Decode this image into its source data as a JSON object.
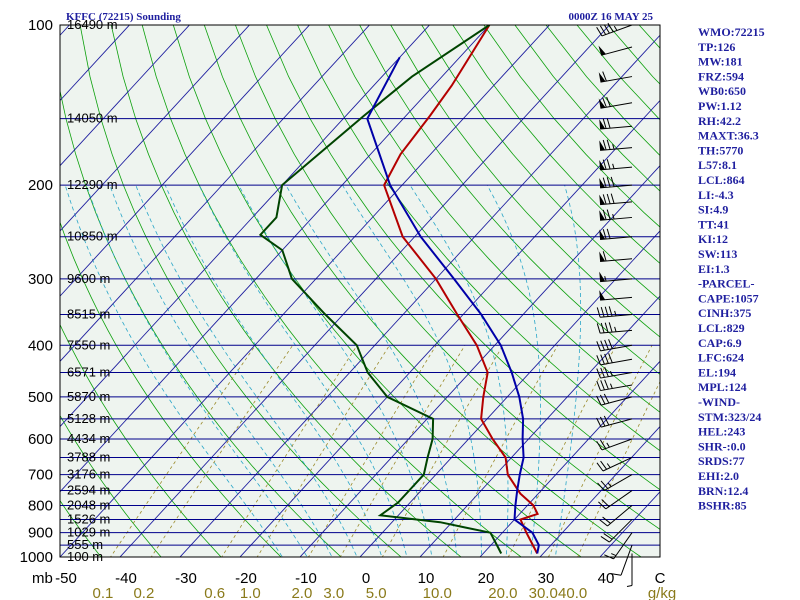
{
  "header": {
    "title_left": "KFFC (72215) Sounding",
    "title_right": "0000Z 16 MAY 25"
  },
  "chart_data": {
    "type": "line",
    "skew": "skew-T log-P",
    "pressure_axis": {
      "unit": "mb",
      "ticks": [
        100,
        200,
        300,
        400,
        500,
        600,
        700,
        800,
        900,
        1000
      ],
      "range": [
        100,
        1000
      ],
      "scale": "log"
    },
    "temperature_axis": {
      "unit": "C",
      "tick_labels": [
        "-50",
        "-40",
        "-30",
        "-20",
        "-10",
        "0",
        "10",
        "20",
        "30",
        "40"
      ],
      "range": [
        -50,
        50
      ]
    },
    "mixing_ratio_axis": {
      "unit": "g/kg",
      "tick_labels": [
        "0.1",
        "0.2",
        "0.6",
        "1.0",
        "2.0",
        "3.0",
        "5.0",
        "10.0",
        "20.0",
        "30.0",
        "40.0"
      ]
    },
    "height_levels": [
      {
        "p": 100,
        "label": "16490 m"
      },
      {
        "p": 150,
        "label": "14050 m"
      },
      {
        "p": 200,
        "label": "12290 m"
      },
      {
        "p": 250,
        "label": "10850 m"
      },
      {
        "p": 300,
        "label": "9600 m"
      },
      {
        "p": 350,
        "label": "8515 m"
      },
      {
        "p": 400,
        "label": "7550 m"
      },
      {
        "p": 450,
        "label": "6571 m"
      },
      {
        "p": 500,
        "label": "5870 m"
      },
      {
        "p": 550,
        "label": "5128 m"
      },
      {
        "p": 600,
        "label": "4434 m"
      },
      {
        "p": 650,
        "label": "3788 m"
      },
      {
        "p": 700,
        "label": "3176 m"
      },
      {
        "p": 750,
        "label": "2594 m"
      },
      {
        "p": 800,
        "label": "2048 m"
      },
      {
        "p": 850,
        "label": "1526 m"
      },
      {
        "p": 900,
        "label": "1029 m"
      },
      {
        "p": 950,
        "label": "555 m"
      },
      {
        "p": 1000,
        "label": "100 m"
      }
    ],
    "series": [
      {
        "color": "#b40000",
        "points": [
          [
            100,
            -60
          ],
          [
            130,
            -57
          ],
          [
            148,
            -56
          ],
          [
            175,
            -55
          ],
          [
            200,
            -53
          ],
          [
            250,
            -42
          ],
          [
            300,
            -30
          ],
          [
            350,
            -21
          ],
          [
            400,
            -13
          ],
          [
            450,
            -7
          ],
          [
            500,
            -4
          ],
          [
            550,
            -1
          ],
          [
            600,
            4
          ],
          [
            650,
            9
          ],
          [
            700,
            12
          ],
          [
            760,
            17
          ],
          [
            800,
            21
          ],
          [
            830,
            23
          ],
          [
            850,
            21
          ],
          [
            900,
            24
          ],
          [
            950,
            27
          ],
          [
            985,
            29
          ]
        ]
      },
      {
        "color": "#004400",
        "points": [
          [
            100,
            -60
          ],
          [
            125,
            -65
          ],
          [
            148,
            -67
          ],
          [
            200,
            -70
          ],
          [
            230,
            -66
          ],
          [
            248,
            -66
          ],
          [
            265,
            -60
          ],
          [
            300,
            -54
          ],
          [
            350,
            -43
          ],
          [
            400,
            -33
          ],
          [
            450,
            -27
          ],
          [
            500,
            -20
          ],
          [
            550,
            -9
          ],
          [
            600,
            -6
          ],
          [
            650,
            -4
          ],
          [
            700,
            -2
          ],
          [
            750,
            -2
          ],
          [
            790,
            -2
          ],
          [
            835,
            -3
          ],
          [
            860,
            8
          ],
          [
            880,
            13
          ],
          [
            900,
            18
          ],
          [
            950,
            21
          ],
          [
            985,
            23
          ]
        ]
      },
      {
        "color": "#0000a8",
        "points": [
          [
            115,
            -70
          ],
          [
            150,
            -66
          ],
          [
            200,
            -52
          ],
          [
            250,
            -39
          ],
          [
            300,
            -27
          ],
          [
            350,
            -17
          ],
          [
            400,
            -9
          ],
          [
            450,
            -3
          ],
          [
            500,
            2
          ],
          [
            550,
            6
          ],
          [
            600,
            9
          ],
          [
            650,
            12
          ],
          [
            700,
            14
          ],
          [
            750,
            16
          ],
          [
            800,
            18
          ],
          [
            850,
            20
          ],
          [
            900,
            25
          ],
          [
            950,
            28
          ],
          [
            985,
            29
          ]
        ]
      }
    ],
    "wind_barbs": [
      {
        "p": 100,
        "dir": 250,
        "spd": 45
      },
      {
        "p": 110,
        "dir": 255,
        "spd": 50
      },
      {
        "p": 125,
        "dir": 260,
        "spd": 60
      },
      {
        "p": 140,
        "dir": 260,
        "spd": 70
      },
      {
        "p": 155,
        "dir": 265,
        "spd": 70
      },
      {
        "p": 170,
        "dir": 265,
        "spd": 75
      },
      {
        "p": 185,
        "dir": 265,
        "spd": 75
      },
      {
        "p": 200,
        "dir": 265,
        "spd": 80
      },
      {
        "p": 215,
        "dir": 265,
        "spd": 80
      },
      {
        "p": 230,
        "dir": 265,
        "spd": 75
      },
      {
        "p": 250,
        "dir": 265,
        "spd": 70
      },
      {
        "p": 275,
        "dir": 265,
        "spd": 60
      },
      {
        "p": 300,
        "dir": 265,
        "spd": 55
      },
      {
        "p": 325,
        "dir": 265,
        "spd": 50
      },
      {
        "p": 350,
        "dir": 265,
        "spd": 45
      },
      {
        "p": 375,
        "dir": 265,
        "spd": 45
      },
      {
        "p": 400,
        "dir": 260,
        "spd": 40
      },
      {
        "p": 425,
        "dir": 260,
        "spd": 40
      },
      {
        "p": 450,
        "dir": 260,
        "spd": 35
      },
      {
        "p": 475,
        "dir": 260,
        "spd": 35
      },
      {
        "p": 500,
        "dir": 255,
        "spd": 30
      },
      {
        "p": 550,
        "dir": 255,
        "spd": 30
      },
      {
        "p": 600,
        "dir": 250,
        "spd": 25
      },
      {
        "p": 650,
        "dir": 245,
        "spd": 25
      },
      {
        "p": 700,
        "dir": 240,
        "spd": 25
      },
      {
        "p": 750,
        "dir": 235,
        "spd": 20
      },
      {
        "p": 800,
        "dir": 230,
        "spd": 20
      },
      {
        "p": 850,
        "dir": 225,
        "spd": 20
      },
      {
        "p": 900,
        "dir": 215,
        "spd": 15
      },
      {
        "p": 950,
        "dir": 200,
        "spd": 10
      },
      {
        "p": 985,
        "dir": 180,
        "spd": 5
      }
    ]
  },
  "indices": [
    "WMO:72215",
    "TP:126",
    "MW:181",
    "FRZ:594",
    "WB0:650",
    "PW:1.12",
    "RH:42.2",
    "MAXT:36.3",
    "TH:5770",
    "L57:8.1",
    "LCL:864",
    "LI:-4.3",
    "SI:4.9",
    "TT:41",
    "KI:12",
    "SW:113",
    "EI:1.3",
    "-PARCEL-",
    "CAPE:1057",
    "CINH:375",
    "LCL:829",
    "CAP:6.9",
    "LFC:624",
    "EL:194",
    "MPL:124",
    "-WIND-",
    "STM:323/24",
    "HEL:243",
    "SHR-:0.0",
    "SRDS:77",
    "EHI:2.0",
    "BRN:12.4",
    "BSHR:85"
  ],
  "colors": {
    "isobar": "#00008b",
    "isotherm": "#1f1f9f",
    "dry_adiabat": "#0da00d",
    "moist_adiabat": "#2aa6c8",
    "mixing_ratio": "#9a8a2a",
    "background": "#eef4ef"
  }
}
